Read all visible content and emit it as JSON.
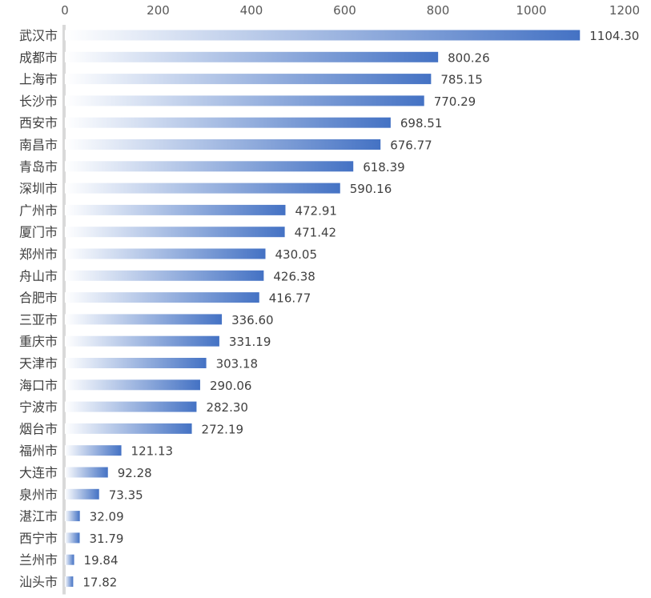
{
  "chart_data": {
    "type": "bar",
    "orientation": "horizontal",
    "title": "",
    "xlabel": "",
    "ylabel": "",
    "xlim": [
      0,
      1200
    ],
    "x_ticks": [
      "0",
      "200",
      "400",
      "600",
      "800",
      "1000",
      "1200"
    ],
    "x_axis_position": "top",
    "grid": false,
    "legend": "none",
    "bar_color_start": "#ffffff",
    "bar_color_end": "#4472c4",
    "axis_line_color": "#d9d9d9",
    "categories": [
      "武汉市",
      "成都市",
      "上海市",
      "长沙市",
      "西安市",
      "南昌市",
      "青岛市",
      "深圳市",
      "广州市",
      "厦门市",
      "郑州市",
      "舟山市",
      "合肥市",
      "三亚市",
      "重庆市",
      "天津市",
      "海口市",
      "宁波市",
      "烟台市",
      "福州市",
      "大连市",
      "泉州市",
      "湛江市",
      "西宁市",
      "兰州市",
      "汕头市"
    ],
    "values": [
      1104.3,
      800.26,
      785.15,
      770.29,
      698.51,
      676.77,
      618.39,
      590.16,
      472.91,
      471.42,
      430.05,
      426.38,
      416.77,
      336.6,
      331.19,
      303.18,
      290.06,
      282.3,
      272.19,
      121.13,
      92.28,
      73.35,
      32.09,
      31.79,
      19.84,
      17.82
    ],
    "value_labels": [
      "1104.30",
      "800.26",
      "785.15",
      "770.29",
      "698.51",
      "676.77",
      "618.39",
      "590.16",
      "472.91",
      "471.42",
      "430.05",
      "426.38",
      "416.77",
      "336.60",
      "331.19",
      "303.18",
      "290.06",
      "282.30",
      "272.19",
      "121.13",
      "92.28",
      "73.35",
      "32.09",
      "31.79",
      "19.84",
      "17.82"
    ]
  }
}
